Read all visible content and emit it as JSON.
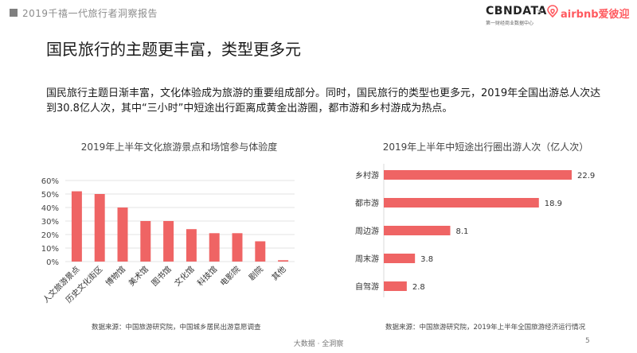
{
  "header": {
    "report_title": "2019千禧一代旅行者洞察报告",
    "logo_cbn": "CBNDATA",
    "logo_cbn_sub": "第一财经商业数据中心",
    "logo_sep": "×",
    "logo_airbnb": "airbnb爱彼迎"
  },
  "slide": {
    "title": "国民旅行的主题更丰富，类型更多元",
    "intro": "国民旅行主题日渐丰富，文化体验成为旅游的重要组成部分。同时，国民旅行的类型也更多元，2019年全国出游总人次达到30.8亿人次，其中“三小时”中短途出行距离成黄金出游圈，都市游和乡村游成为热点。"
  },
  "chart_data": [
    {
      "type": "bar",
      "title": "2019年上半年文化旅游景点和场馆参与体验度",
      "categories": [
        "人文旅游景点",
        "历史文化街区",
        "博物馆",
        "美术馆",
        "图书馆",
        "文化馆",
        "科技馆",
        "电影院",
        "剧院",
        "其他"
      ],
      "values": [
        52,
        50,
        40,
        30,
        30,
        24,
        21,
        21,
        15,
        1
      ],
      "ylim": [
        0,
        60
      ],
      "yticks": [
        "0%",
        "10%",
        "20%",
        "30%",
        "40%",
        "50%",
        "60%"
      ],
      "grid": true,
      "color": "#ef6464",
      "source": "数据来源：中国旅游研究院，中国城乡居民出游意愿调查"
    },
    {
      "type": "bar",
      "orientation": "horizontal",
      "title": "2019年上半年中短途出行圈出游人次（亿人次）",
      "categories": [
        "乡村游",
        "都市游",
        "周边游",
        "周末游",
        "自驾游"
      ],
      "values": [
        22.9,
        18.9,
        8.1,
        3.8,
        2.8
      ],
      "value_labels": [
        "22.9",
        "18.9",
        "8.1",
        "3.8",
        "2.8"
      ],
      "color": "#ef6464",
      "source": "数据来源：中国旅游研究院，2019年上半年全国旅游经济运行情况"
    }
  ],
  "footer": {
    "text": "大数据 · 全洞察",
    "page": "5"
  }
}
